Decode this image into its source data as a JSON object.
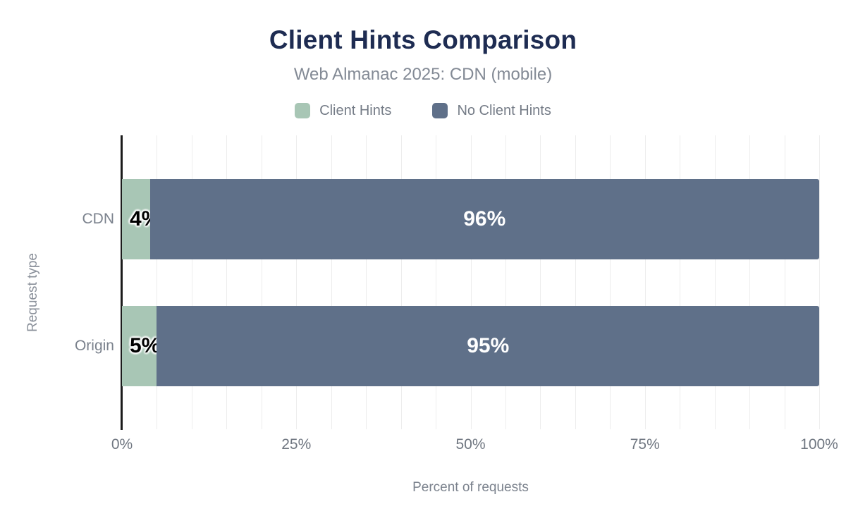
{
  "header": {
    "title": "Client Hints Comparison",
    "subtitle": "Web Almanac 2025: CDN (mobile)"
  },
  "legend": {
    "items": [
      {
        "label": "Client Hints",
        "color": "#a8c6b5"
      },
      {
        "label": "No Client Hints",
        "color": "#5f7089"
      }
    ]
  },
  "axes": {
    "x_title": "Percent of requests",
    "y_title": "Request type",
    "x_ticks": [
      {
        "label": "0%",
        "value": 0
      },
      {
        "label": "25%",
        "value": 25
      },
      {
        "label": "50%",
        "value": 50
      },
      {
        "label": "75%",
        "value": 75
      },
      {
        "label": "100%",
        "value": 100
      }
    ]
  },
  "chart_data": {
    "type": "bar",
    "orientation": "horizontal",
    "stacked": true,
    "title": "Client Hints Comparison",
    "subtitle": "Web Almanac 2025: CDN (mobile)",
    "xlabel": "Percent of requests",
    "ylabel": "Request type",
    "categories": [
      "CDN",
      "Origin"
    ],
    "series": [
      {
        "name": "Client Hints",
        "color": "#a8c6b5",
        "values": [
          4,
          5
        ],
        "labels": [
          "4%",
          "5%"
        ]
      },
      {
        "name": "No Client Hints",
        "color": "#5f7089",
        "values": [
          96,
          95
        ],
        "labels": [
          "96%",
          "95%"
        ]
      }
    ],
    "xlim": [
      0,
      100
    ],
    "grid": true,
    "gridline_step_percent": 5,
    "legend_position": "top"
  },
  "colors": {
    "background": "#ffffff",
    "title_text": "#1e2c52",
    "muted_text": "#7b828d",
    "gridline": "#ededed",
    "axis_line": "#1b1b1b",
    "bar_label_dark": "#000000",
    "bar_label_light": "#ffffff"
  }
}
